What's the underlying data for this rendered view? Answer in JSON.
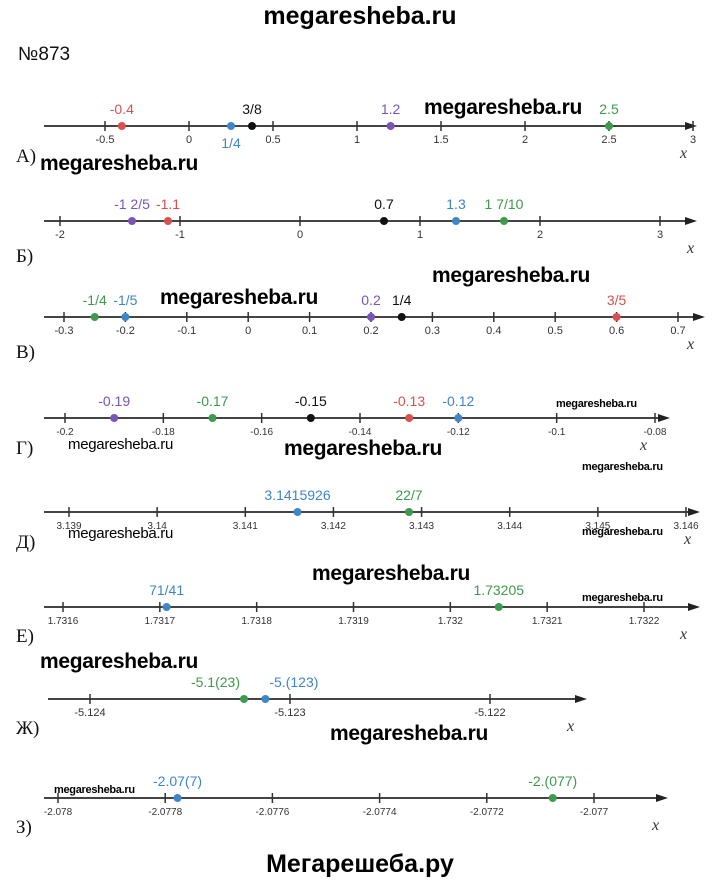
{
  "header": {
    "site": "megaresheba.ru",
    "problem_number": "№873"
  },
  "footer": {
    "site": "Мегарешеба.ру"
  },
  "axis_label": "x",
  "colors": {
    "red": "#d9504e",
    "blue": "#3f86c8",
    "purple": "#7a54b8",
    "green": "#3e9a4c",
    "black": "#111111"
  },
  "watermarks": [
    "megaresheba.ru",
    "megaresheba.ru",
    "megaresheba.ru",
    "megaresheba.ru",
    "megaresheba.ru",
    "megaresheba.ru",
    "megaresheba.ru",
    "megaresheba.ru",
    "megaresheba.ru",
    "megaresheba.ru",
    "megaresheba.ru",
    "megaresheba.ru",
    "megaresheba.ru",
    "megaresheba.ru",
    "megaresheba.ru"
  ],
  "lines": [
    {
      "letter": "А)",
      "ticks": [
        {
          "v": -0.5,
          "t": "-0.5"
        },
        {
          "v": 0,
          "t": "0"
        },
        {
          "v": 0.5,
          "t": "0.5"
        },
        {
          "v": 1,
          "t": "1"
        },
        {
          "v": 1.5,
          "t": "1.5"
        },
        {
          "v": 2,
          "t": "2"
        },
        {
          "v": 2.5,
          "t": "2.5"
        },
        {
          "v": 3,
          "t": "3"
        }
      ],
      "points": [
        {
          "v": -0.4,
          "t": "-0.4",
          "c": "red"
        },
        {
          "v": 0.25,
          "t": "1/4",
          "c": "blue"
        },
        {
          "v": 0.375,
          "t": "3/8",
          "c": "black"
        },
        {
          "v": 1.2,
          "t": "1.2",
          "c": "purple"
        },
        {
          "v": 2.5,
          "t": "2.5",
          "c": "green"
        }
      ]
    },
    {
      "letter": "Б)",
      "ticks": [
        {
          "v": -2,
          "t": "-2"
        },
        {
          "v": -1,
          "t": "-1"
        },
        {
          "v": 0,
          "t": "0"
        },
        {
          "v": 1,
          "t": "1"
        },
        {
          "v": 2,
          "t": "2"
        },
        {
          "v": 3,
          "t": "3"
        }
      ],
      "points": [
        {
          "v": -1.4,
          "t": "-1 2/5",
          "c": "purple"
        },
        {
          "v": -1.1,
          "t": "-1.1",
          "c": "red"
        },
        {
          "v": 0.7,
          "t": "0.7",
          "c": "black"
        },
        {
          "v": 1.3,
          "t": "1.3",
          "c": "blue"
        },
        {
          "v": 1.7,
          "t": "1 7/10",
          "c": "green"
        }
      ]
    },
    {
      "letter": "В)",
      "ticks": [
        {
          "v": -0.3,
          "t": "-0.3"
        },
        {
          "v": -0.2,
          "t": "-0.2"
        },
        {
          "v": -0.1,
          "t": "-0.1"
        },
        {
          "v": 0,
          "t": "0"
        },
        {
          "v": 0.1,
          "t": "0.1"
        },
        {
          "v": 0.2,
          "t": "0.2"
        },
        {
          "v": 0.3,
          "t": "0.3"
        },
        {
          "v": 0.4,
          "t": "0.4"
        },
        {
          "v": 0.5,
          "t": "0.5"
        },
        {
          "v": 0.6,
          "t": "0.6"
        },
        {
          "v": 0.7,
          "t": "0.7"
        }
      ],
      "points": [
        {
          "v": -0.25,
          "t": "-1/4",
          "c": "green"
        },
        {
          "v": -0.2,
          "t": "-1/5",
          "c": "blue"
        },
        {
          "v": 0.2,
          "t": "0.2",
          "c": "purple"
        },
        {
          "v": 0.25,
          "t": "1/4",
          "c": "black"
        },
        {
          "v": 0.6,
          "t": "3/5",
          "c": "red"
        }
      ]
    },
    {
      "letter": "Г)",
      "ticks": [
        {
          "v": -0.2,
          "t": "-0.2"
        },
        {
          "v": -0.18,
          "t": "-0.18"
        },
        {
          "v": -0.16,
          "t": "-0.16"
        },
        {
          "v": -0.14,
          "t": "-0.14"
        },
        {
          "v": -0.12,
          "t": "-0.12"
        },
        {
          "v": -0.1,
          "t": "-0.1"
        },
        {
          "v": -0.08,
          "t": "-0.08"
        }
      ],
      "points": [
        {
          "v": -0.19,
          "t": "-0.19",
          "c": "purple"
        },
        {
          "v": -0.17,
          "t": "-0.17",
          "c": "green"
        },
        {
          "v": -0.15,
          "t": "-0.15",
          "c": "black"
        },
        {
          "v": -0.13,
          "t": "-0.13",
          "c": "red"
        },
        {
          "v": -0.12,
          "t": "-0.12",
          "c": "blue"
        }
      ]
    },
    {
      "letter": "Д)",
      "ticks": [
        {
          "v": 3.139,
          "t": "3.139"
        },
        {
          "v": 3.14,
          "t": "3.14"
        },
        {
          "v": 3.141,
          "t": "3.141"
        },
        {
          "v": 3.142,
          "t": "3.142"
        },
        {
          "v": 3.143,
          "t": "3.143"
        },
        {
          "v": 3.144,
          "t": "3.144"
        },
        {
          "v": 3.145,
          "t": "3.145"
        },
        {
          "v": 3.146,
          "t": "3.146"
        }
      ],
      "points": [
        {
          "v": 3.1415926,
          "t": "3.1415926",
          "c": "blue"
        },
        {
          "v": 3.142857,
          "t": "22/7",
          "c": "green"
        }
      ]
    },
    {
      "letter": "Е)",
      "ticks": [
        {
          "v": 1.7316,
          "t": "1.7316"
        },
        {
          "v": 1.7317,
          "t": "1.7317"
        },
        {
          "v": 1.7318,
          "t": "1.7318"
        },
        {
          "v": 1.7319,
          "t": "1.7319"
        },
        {
          "v": 1.732,
          "t": "1.732"
        },
        {
          "v": 1.7321,
          "t": "1.7321"
        },
        {
          "v": 1.7322,
          "t": "1.7322"
        }
      ],
      "points": [
        {
          "v": 1.731707,
          "t": "71/41",
          "c": "blue"
        },
        {
          "v": 1.73205,
          "t": "1.73205",
          "c": "green"
        }
      ]
    },
    {
      "letter": "Ж)",
      "ticks": [
        {
          "v": -5.124,
          "t": "-5.124"
        },
        {
          "v": -5.123,
          "t": "-5.123"
        },
        {
          "v": -5.122,
          "t": "-5.122"
        }
      ],
      "points": [
        {
          "v": -5.12323,
          "t": "-5.1(23)",
          "c": "green"
        },
        {
          "v": -5.123123,
          "t": "-5.(123)",
          "c": "blue"
        }
      ]
    },
    {
      "letter": "З)",
      "ticks": [
        {
          "v": -2.078,
          "t": "-2.078"
        },
        {
          "v": -2.0778,
          "t": "-2.0778"
        },
        {
          "v": -2.0776,
          "t": "-2.0776"
        },
        {
          "v": -2.0774,
          "t": "-2.0774"
        },
        {
          "v": -2.0772,
          "t": "-2.0772"
        },
        {
          "v": -2.077,
          "t": "-2.077"
        }
      ],
      "points": [
        {
          "v": -2.077777,
          "t": "-2.07(7)",
          "c": "blue"
        },
        {
          "v": -2.077077,
          "t": "-2.(077)",
          "c": "green"
        }
      ]
    }
  ]
}
